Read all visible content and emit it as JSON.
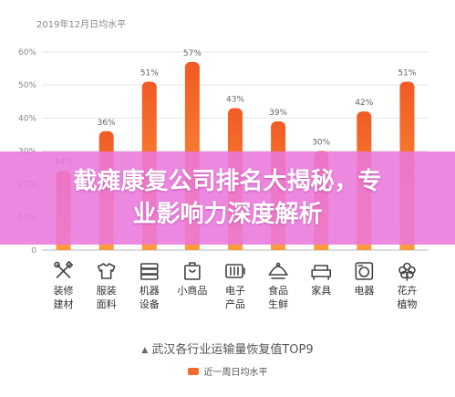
{
  "chart_data": {
    "type": "bar",
    "title": "2019年12月日均水平",
    "categories": [
      "装修\n建材",
      "服装\n面料",
      "机器\n设备",
      "小商品",
      "电子\n产品",
      "食品\n生鲜",
      "家具",
      "电器",
      "花卉\n植物"
    ],
    "series": [
      {
        "name": "近一周日均水平",
        "values": [
          24,
          36,
          51,
          57,
          43,
          39,
          30,
          42,
          51
        ]
      }
    ],
    "value_labels": [
      "24%",
      "36%",
      "51%",
      "57%",
      "43%",
      "39%",
      "30%",
      "42%",
      "51%"
    ],
    "y_ticks": [
      "0",
      "10%",
      "20%",
      "30%",
      "40%",
      "50%",
      "60%"
    ],
    "ylim": [
      0,
      60
    ],
    "icons": [
      "tools-icon",
      "shirt-icon",
      "machine-icon",
      "bag-icon",
      "battery-icon",
      "food-cloche-icon",
      "sofa-icon",
      "washing-machine-icon",
      "flower-icon"
    ],
    "bar_color": "#f26a2e",
    "bar_color_light": "#ff9a3c",
    "grid": true
  },
  "banner": {
    "line1": "截瘫康复公司排名大揭秘，专",
    "line2": "业影响力深度解析"
  },
  "footer": {
    "title": "武汉各行业运输量恢复值TOP9",
    "legend_label": "近一周日均水平"
  }
}
